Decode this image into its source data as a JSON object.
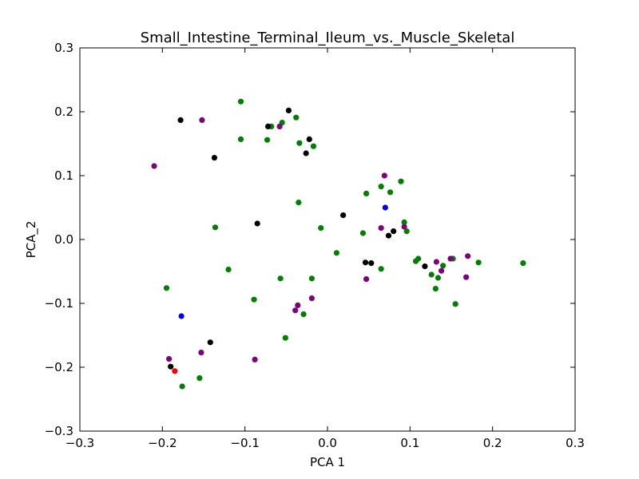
{
  "chart_data": {
    "type": "scatter",
    "title": "Small_Intestine_Terminal_Ileum_vs._Muscle_Skeletal",
    "xlabel": "PCA 1",
    "ylabel": "PCA_2",
    "xlim": [
      -0.3,
      0.3
    ],
    "ylim": [
      -0.3,
      0.3
    ],
    "xticks": [
      -0.3,
      -0.2,
      -0.1,
      0.0,
      0.1,
      0.2,
      0.3
    ],
    "yticks": [
      -0.3,
      -0.2,
      -0.1,
      0.0,
      0.1,
      0.2,
      0.3
    ],
    "xtick_labels": [
      "−0.3",
      "−0.2",
      "−0.1",
      "0.0",
      "0.1",
      "0.2",
      "0.3"
    ],
    "ytick_labels": [
      "−0.3",
      "−0.2",
      "−0.1",
      "0.0",
      "0.1",
      "0.2",
      "0.3"
    ],
    "grid": false,
    "series": [
      {
        "color": "#008000",
        "points": [
          [
            -0.105,
            0.216
          ],
          [
            -0.105,
            0.157
          ],
          [
            -0.073,
            0.156
          ],
          [
            -0.068,
            0.177
          ],
          [
            -0.055,
            0.183
          ],
          [
            -0.038,
            0.191
          ],
          [
            -0.034,
            0.151
          ],
          [
            -0.017,
            0.146
          ],
          [
            -0.035,
            0.058
          ],
          [
            -0.136,
            0.019
          ],
          [
            -0.008,
            0.018
          ],
          [
            0.011,
            -0.021
          ],
          [
            -0.12,
            -0.047
          ],
          [
            -0.195,
            -0.076
          ],
          [
            -0.057,
            -0.061
          ],
          [
            -0.019,
            -0.061
          ],
          [
            -0.089,
            -0.094
          ],
          [
            -0.029,
            -0.117
          ],
          [
            -0.051,
            -0.154
          ],
          [
            -0.155,
            -0.217
          ],
          [
            -0.176,
            -0.23
          ],
          [
            0.047,
            0.072
          ],
          [
            0.065,
            0.083
          ],
          [
            0.076,
            0.074
          ],
          [
            0.089,
            0.091
          ],
          [
            0.093,
            0.027
          ],
          [
            0.096,
            0.013
          ],
          [
            0.043,
            0.01
          ],
          [
            0.065,
            -0.046
          ],
          [
            0.107,
            -0.034
          ],
          [
            0.11,
            -0.03
          ],
          [
            0.126,
            -0.055
          ],
          [
            0.131,
            -0.077
          ],
          [
            0.134,
            -0.06
          ],
          [
            0.14,
            -0.041
          ],
          [
            0.152,
            -0.03
          ],
          [
            0.155,
            -0.101
          ],
          [
            0.183,
            -0.036
          ],
          [
            0.237,
            -0.037
          ]
        ]
      },
      {
        "color": "#800080",
        "points": [
          [
            -0.21,
            0.115
          ],
          [
            -0.152,
            0.187
          ],
          [
            -0.058,
            0.177
          ],
          [
            -0.036,
            -0.103
          ],
          [
            -0.039,
            -0.111
          ],
          [
            -0.019,
            -0.092
          ],
          [
            -0.088,
            -0.188
          ],
          [
            -0.153,
            -0.177
          ],
          [
            -0.192,
            -0.187
          ],
          [
            0.069,
            0.1
          ],
          [
            0.065,
            0.018
          ],
          [
            0.093,
            0.02
          ],
          [
            0.047,
            -0.062
          ],
          [
            0.132,
            -0.035
          ],
          [
            0.138,
            -0.049
          ],
          [
            0.149,
            -0.03
          ],
          [
            0.17,
            -0.026
          ],
          [
            0.168,
            -0.059
          ]
        ]
      },
      {
        "color": "#000000",
        "points": [
          [
            -0.178,
            0.187
          ],
          [
            -0.137,
            0.128
          ],
          [
            -0.072,
            0.177
          ],
          [
            -0.047,
            0.202
          ],
          [
            -0.022,
            0.157
          ],
          [
            -0.026,
            0.135
          ],
          [
            -0.085,
            0.025
          ],
          [
            0.019,
            0.038
          ],
          [
            0.046,
            -0.036
          ],
          [
            0.053,
            -0.037
          ],
          [
            0.074,
            0.006
          ],
          [
            0.08,
            0.013
          ],
          [
            0.118,
            -0.042
          ],
          [
            -0.142,
            -0.161
          ],
          [
            -0.19,
            -0.199
          ]
        ]
      },
      {
        "color": "#0000ff",
        "points": [
          [
            0.07,
            0.05
          ],
          [
            -0.177,
            -0.12
          ]
        ]
      },
      {
        "color": "#ff0000",
        "points": [
          [
            -0.185,
            -0.206
          ]
        ]
      }
    ]
  }
}
